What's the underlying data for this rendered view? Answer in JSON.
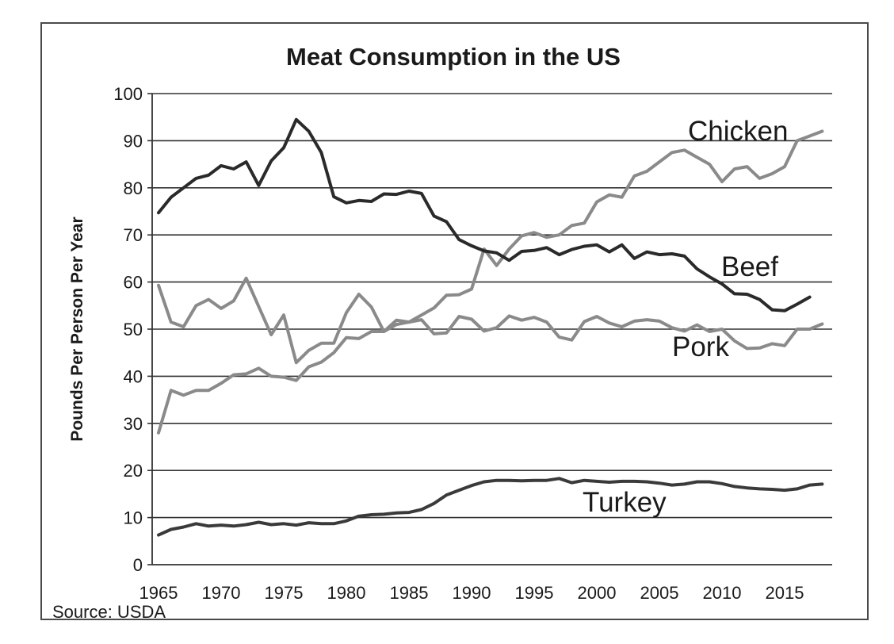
{
  "chart_data": {
    "type": "line",
    "title": "Meat Consumption in the US",
    "xlabel": "",
    "ylabel": "Pounds Per Person Per Year",
    "xlim": [
      1965,
      2018
    ],
    "ylim": [
      0,
      100
    ],
    "y_ticks": [
      "0",
      "10",
      "20",
      "30",
      "40",
      "50",
      "60",
      "70",
      "80",
      "90",
      "100"
    ],
    "x_ticks": [
      "1965",
      "1970",
      "1975",
      "1980",
      "1985",
      "1990",
      "1995",
      "2000",
      "2005",
      "2010",
      "2015"
    ],
    "grid": "horizontal",
    "legend": "none",
    "source": "Source: USDA",
    "series": [
      {
        "name": "Chicken",
        "color": "#8a8a8a",
        "x": [
          1965,
          1966,
          1967,
          1968,
          1969,
          1970,
          1971,
          1972,
          1973,
          1974,
          1975,
          1976,
          1977,
          1978,
          1979,
          1980,
          1981,
          1982,
          1983,
          1984,
          1985,
          1986,
          1987,
          1988,
          1989,
          1990,
          1991,
          1992,
          1993,
          1994,
          1995,
          1996,
          1997,
          1998,
          1999,
          2000,
          2001,
          2002,
          2003,
          2004,
          2005,
          2006,
          2007,
          2008,
          2009,
          2010,
          2011,
          2012,
          2013,
          2014,
          2015,
          2016,
          2017,
          2018
        ],
        "values": [
          28,
          37,
          36,
          37,
          37,
          38.5,
          40.3,
          40.5,
          41.7,
          40,
          39.8,
          39.1,
          42,
          43,
          45,
          48.2,
          48,
          49.5,
          49.5,
          51,
          51.5,
          53,
          54.5,
          57.2,
          57.3,
          58.5,
          67,
          63.5,
          67,
          69.8,
          70.5,
          69.5,
          70,
          72,
          72.5,
          77,
          78.5,
          78,
          82.5,
          83.5,
          85.5,
          87.5,
          88,
          86.5,
          85,
          81.3,
          84,
          84.5,
          82,
          83,
          84.5,
          90,
          91,
          92
        ]
      },
      {
        "name": "Beef",
        "color": "#2a2a2a",
        "x": [
          1965,
          1966,
          1967,
          1968,
          1969,
          1970,
          1971,
          1972,
          1973,
          1974,
          1975,
          1976,
          1977,
          1978,
          1979,
          1980,
          1981,
          1982,
          1983,
          1984,
          1985,
          1986,
          1987,
          1988,
          1989,
          1990,
          1991,
          1992,
          1993,
          1994,
          1995,
          1996,
          1997,
          1998,
          1999,
          2000,
          2001,
          2002,
          2003,
          2004,
          2005,
          2006,
          2007,
          2008,
          2009,
          2010,
          2011,
          2012,
          2013,
          2014,
          2015,
          2016,
          2017
        ],
        "values": [
          74.7,
          78,
          80,
          82,
          82.7,
          84.7,
          84,
          85.5,
          80.5,
          85.7,
          88.5,
          94.5,
          92,
          87.5,
          78.1,
          76.8,
          77.3,
          77.1,
          78.7,
          78.6,
          79.3,
          78.8,
          74,
          72.8,
          69,
          67.7,
          66.6,
          66.2,
          64.6,
          66.5,
          66.7,
          67.3,
          65.8,
          66.9,
          67.6,
          67.9,
          66.4,
          67.9,
          65,
          66.4,
          65.8,
          66,
          65.5,
          62.8,
          61.1,
          59.6,
          57.5,
          57.4,
          56.3,
          54.1,
          53.9,
          55.3,
          56.8
        ]
      },
      {
        "name": "Pork",
        "color": "#8a8a8a",
        "x": [
          1965,
          1966,
          1967,
          1968,
          1969,
          1970,
          1971,
          1972,
          1973,
          1974,
          1975,
          1976,
          1977,
          1978,
          1979,
          1980,
          1981,
          1982,
          1983,
          1984,
          1985,
          1986,
          1987,
          1988,
          1989,
          1990,
          1991,
          1992,
          1993,
          1994,
          1995,
          1996,
          1997,
          1998,
          1999,
          2000,
          2001,
          2002,
          2003,
          2004,
          2005,
          2006,
          2007,
          2008,
          2009,
          2010,
          2011,
          2012,
          2013,
          2014,
          2015,
          2016,
          2017,
          2018
        ],
        "values": [
          59.3,
          51.5,
          50.5,
          55,
          56.3,
          54.4,
          56,
          60.8,
          54.8,
          48.8,
          53,
          42.9,
          45.5,
          47,
          47,
          53.5,
          57.4,
          54.7,
          49.5,
          51.9,
          51.5,
          52,
          49,
          49.2,
          52.7,
          52.1,
          49.6,
          50.3,
          52.8,
          51.9,
          52.5,
          51.5,
          48.3,
          47.7,
          51.6,
          52.7,
          51.3,
          50.5,
          51.7,
          52,
          51.7,
          50.3,
          49.6,
          50.9,
          49.5,
          50,
          47.5,
          45.9,
          46,
          46.9,
          46.5,
          50,
          50,
          51.1
        ]
      },
      {
        "name": "Turkey",
        "color": "#3a3a3a",
        "x": [
          1965,
          1966,
          1967,
          1968,
          1969,
          1970,
          1971,
          1972,
          1973,
          1974,
          1975,
          1976,
          1977,
          1978,
          1979,
          1980,
          1981,
          1982,
          1983,
          1984,
          1985,
          1986,
          1987,
          1988,
          1989,
          1990,
          1991,
          1992,
          1993,
          1994,
          1995,
          1996,
          1997,
          1998,
          1999,
          2000,
          2001,
          2002,
          2003,
          2004,
          2005,
          2006,
          2007,
          2008,
          2009,
          2010,
          2011,
          2012,
          2013,
          2014,
          2015,
          2016,
          2017,
          2018
        ],
        "values": [
          6.3,
          7.5,
          8,
          8.7,
          8.2,
          8.4,
          8.2,
          8.5,
          9,
          8.5,
          8.7,
          8.4,
          8.9,
          8.7,
          8.7,
          9.3,
          10.3,
          10.6,
          10.7,
          11,
          11.1,
          11.7,
          13,
          14.8,
          15.8,
          16.8,
          17.6,
          17.9,
          17.9,
          17.8,
          17.9,
          17.9,
          18.3,
          17.4,
          17.9,
          17.7,
          17.5,
          17.7,
          17.7,
          17.6,
          17.3,
          16.9,
          17.1,
          17.6,
          17.6,
          17.2,
          16.6,
          16.3,
          16.1,
          16,
          15.8,
          16.1,
          16.9,
          17.1
        ]
      }
    ]
  }
}
